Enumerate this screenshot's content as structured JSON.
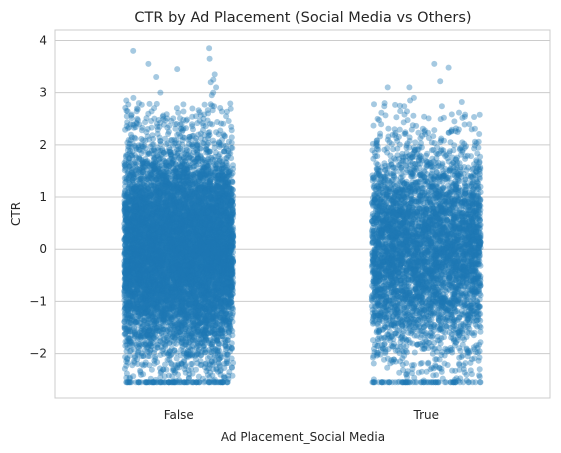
{
  "chart_data": {
    "type": "scatter",
    "subtype": "strip",
    "title": "CTR by Ad Placement (Social Media vs Others)",
    "xlabel": "Ad Placement_Social Media",
    "ylabel": "CTR",
    "categories": [
      "False",
      "True"
    ],
    "ylim": [
      -2.85,
      4.2
    ],
    "yticks": [
      -2,
      -1,
      0,
      1,
      2,
      3,
      4
    ],
    "ytick_labels": [
      "−2",
      "−1",
      "0",
      "1",
      "2",
      "3",
      "4"
    ],
    "grid": "horizontal",
    "legend": "none",
    "point_color": "#1f77b4",
    "point_alpha": 0.4,
    "series": [
      {
        "category": "False",
        "clip_min": -2.55,
        "distribution": {
          "mean": 0.0,
          "std": 1.0,
          "count": 9000
        },
        "outliers": [
          {
            "y": 3.85
          },
          {
            "y": 3.8
          },
          {
            "y": 3.65
          },
          {
            "y": 3.55
          },
          {
            "y": 3.45
          },
          {
            "y": 3.35
          },
          {
            "y": 3.3
          },
          {
            "y": 3.25
          },
          {
            "y": 3.2
          },
          {
            "y": 3.1
          },
          {
            "y": 3.0
          },
          {
            "y": 3.0
          },
          {
            "y": 2.95
          },
          {
            "y": 2.9
          },
          {
            "y": 2.85
          },
          {
            "y": 2.8
          }
        ]
      },
      {
        "category": "True",
        "clip_min": -2.55,
        "distribution": {
          "mean": 0.0,
          "std": 1.0,
          "count": 4500
        },
        "outliers": [
          {
            "y": 3.55
          },
          {
            "y": 3.48
          },
          {
            "y": 3.22
          },
          {
            "y": 3.1
          },
          {
            "y": 3.1
          },
          {
            "y": 2.9
          },
          {
            "y": 2.85
          },
          {
            "y": 2.82
          },
          {
            "y": 2.8
          }
        ]
      }
    ]
  }
}
